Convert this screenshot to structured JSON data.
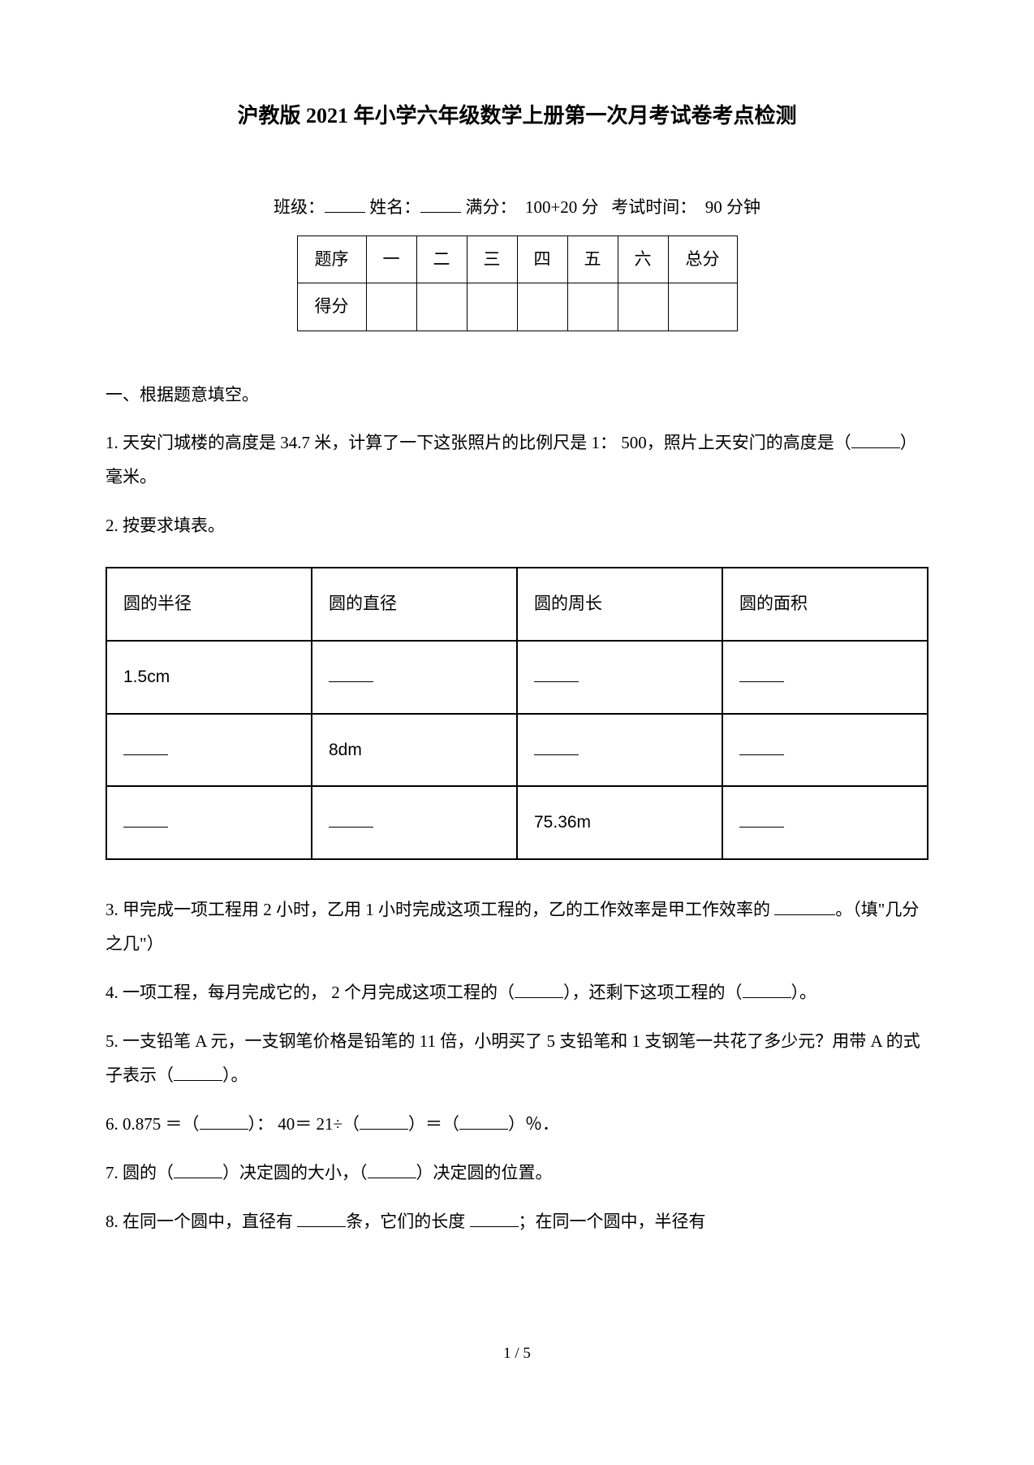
{
  "title": "沪教版 2021 年小学六年级数学上册第一次月考试卷考点检测",
  "info": {
    "class_label": "班级：",
    "name_label": "姓名：",
    "score_label": "满分：",
    "score_value": "100+20 分",
    "time_label": "考试时间：",
    "time_value": "90 分钟"
  },
  "score_table": {
    "row1": [
      "题序",
      "一",
      "二",
      "三",
      "四",
      "五",
      "六",
      "总分"
    ],
    "row2_label": "得分"
  },
  "section1_header": "一、根据题意填空。",
  "q1": {
    "prefix": "1.  天安门城楼的高度是 34.7 米，计算了一下这张照片的比例尺是 1： 500，照片上天安门的高度是（",
    "suffix": "）毫米。"
  },
  "q2": {
    "text": "2.  按要求填表。"
  },
  "circle_table": {
    "headers": [
      "圆的半径",
      "圆的直径",
      "圆的周长",
      "圆的面积"
    ],
    "rows": [
      [
        "1.5cm",
        "",
        "",
        ""
      ],
      [
        "",
        "8dm",
        "",
        ""
      ],
      [
        "",
        "",
        "75.36m",
        ""
      ]
    ]
  },
  "q3": {
    "prefix": "3.  甲完成一项工程用 2 小时，乙用 1 小时完成这项工程的，乙的工作效率是甲工作效率的 ",
    "suffix": "。（填\"几分之几\"）"
  },
  "q4": {
    "part1": "4.  一项工程，每月完成它的， 2 个月完成这项工程的（",
    "part2": "），还剩下这项工程的（",
    "part3": "）。"
  },
  "q5": {
    "part1": "5.  一支铅笔 A 元，一支钢笔价格是铅笔的 11 倍，小明买了 5 支铅笔和 1 支钢笔一共花了多少元？用带 A 的式子表示（",
    "part2": "）。"
  },
  "q6": {
    "part1": "6. 0.875 ＝（",
    "part2": "）： 40＝ 21÷（",
    "part3": "）＝（",
    "part4": "）％．"
  },
  "q7": {
    "part1": "7.  圆的（",
    "part2": "）决定圆的大小，（",
    "part3": "）决定圆的位置。"
  },
  "q8": {
    "part1": "8.  在同一个圆中，直径有 ",
    "part2": "条，它们的长度 ",
    "part3": "；在同一个圆中，半径有"
  },
  "page_number": "1 / 5"
}
